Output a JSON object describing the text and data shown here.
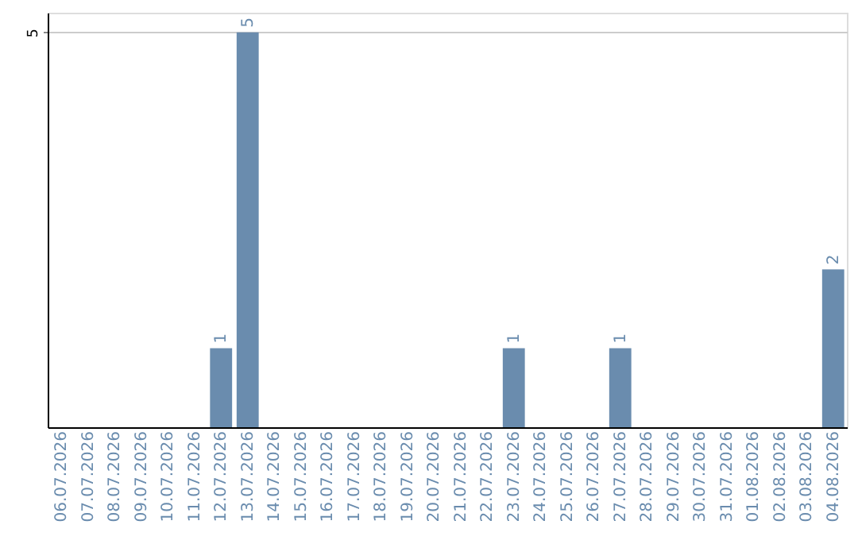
{
  "chart_data": {
    "type": "bar",
    "categories": [
      "06.07.2026",
      "07.07.2026",
      "08.07.2026",
      "09.07.2026",
      "10.07.2026",
      "11.07.2026",
      "12.07.2026",
      "13.07.2026",
      "14.07.2026",
      "15.07.2026",
      "16.07.2026",
      "17.07.2026",
      "18.07.2026",
      "19.07.2026",
      "20.07.2026",
      "21.07.2026",
      "22.07.2026",
      "23.07.2026",
      "24.07.2026",
      "25.07.2026",
      "26.07.2026",
      "27.07.2026",
      "28.07.2026",
      "29.07.2026",
      "30.07.2026",
      "31.07.2026",
      "01.08.2026",
      "02.08.2026",
      "03.08.2026",
      "04.08.2026"
    ],
    "values": [
      null,
      null,
      null,
      null,
      null,
      null,
      1,
      5,
      null,
      null,
      null,
      null,
      null,
      null,
      null,
      null,
      null,
      1,
      null,
      null,
      null,
      1,
      null,
      null,
      null,
      null,
      null,
      null,
      null,
      2
    ],
    "color": "#6a8cae",
    "ylim": [
      0,
      5.25
    ],
    "yticks": [
      5
    ],
    "grid": "y",
    "data_labels": true
  }
}
